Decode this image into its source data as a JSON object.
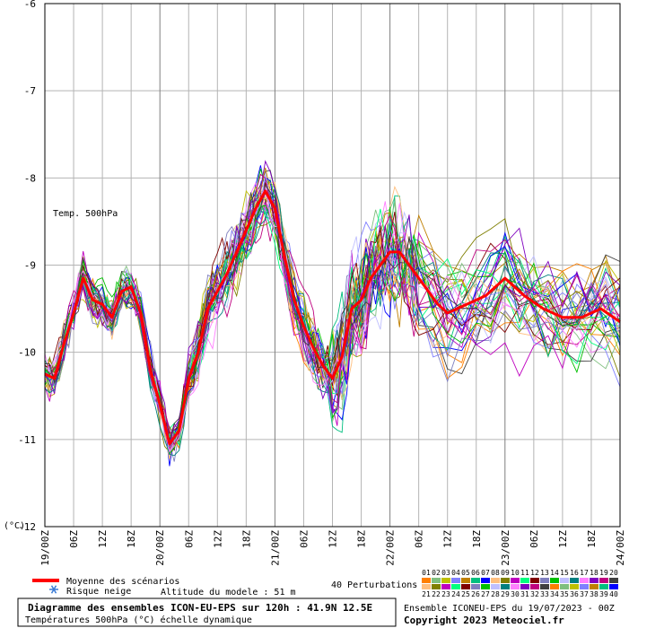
{
  "chart_data": {
    "type": "line",
    "series_label": "Temp. 500hPa",
    "y_unit": "(°C)",
    "ylim": [
      -12,
      -6
    ],
    "y_ticks": [
      -6,
      -7,
      -8,
      -9,
      -10,
      -11,
      -12
    ],
    "x_ticks": [
      "19/00Z",
      "06Z",
      "12Z",
      "18Z",
      "20/00Z",
      "06Z",
      "12Z",
      "18Z",
      "21/00Z",
      "06Z",
      "12Z",
      "18Z",
      "22/00Z",
      "06Z",
      "12Z",
      "18Z",
      "23/00Z",
      "06Z",
      "12Z",
      "18Z",
      "24/00Z"
    ],
    "x_hours": [
      0,
      6,
      12,
      18,
      24,
      30,
      36,
      42,
      48,
      54,
      60,
      66,
      72,
      78,
      84,
      90,
      96,
      102,
      108,
      114,
      120
    ],
    "grid": true,
    "mean_series": {
      "name": "Moyenne des scénarios",
      "color": "#ff0000",
      "points": [
        [
          0,
          -10.25
        ],
        [
          2,
          -10.3
        ],
        [
          4,
          -9.9
        ],
        [
          6,
          -9.55
        ],
        [
          8,
          -9.15
        ],
        [
          10,
          -9.4
        ],
        [
          12,
          -9.45
        ],
        [
          14,
          -9.6
        ],
        [
          16,
          -9.3
        ],
        [
          18,
          -9.25
        ],
        [
          20,
          -9.55
        ],
        [
          22,
          -10.2
        ],
        [
          24,
          -10.6
        ],
        [
          26,
          -11.05
        ],
        [
          28,
          -10.9
        ],
        [
          30,
          -10.3
        ],
        [
          32,
          -10.0
        ],
        [
          34,
          -9.5
        ],
        [
          36,
          -9.3
        ],
        [
          38,
          -9.1
        ],
        [
          40,
          -8.85
        ],
        [
          42,
          -8.6
        ],
        [
          44,
          -8.35
        ],
        [
          46,
          -8.15
        ],
        [
          48,
          -8.35
        ],
        [
          50,
          -8.9
        ],
        [
          52,
          -9.4
        ],
        [
          54,
          -9.7
        ],
        [
          56,
          -9.95
        ],
        [
          58,
          -10.15
        ],
        [
          60,
          -10.3
        ],
        [
          62,
          -10.05
        ],
        [
          64,
          -9.5
        ],
        [
          66,
          -9.4
        ],
        [
          68,
          -9.15
        ],
        [
          70,
          -9.0
        ],
        [
          72,
          -8.85
        ],
        [
          74,
          -8.85
        ],
        [
          78,
          -9.15
        ],
        [
          82,
          -9.45
        ],
        [
          84,
          -9.55
        ],
        [
          88,
          -9.45
        ],
        [
          92,
          -9.35
        ],
        [
          96,
          -9.15
        ],
        [
          100,
          -9.35
        ],
        [
          104,
          -9.5
        ],
        [
          108,
          -9.6
        ],
        [
          112,
          -9.6
        ],
        [
          116,
          -9.5
        ],
        [
          120,
          -9.65
        ]
      ]
    },
    "perturbation_count": "40 Perturbations",
    "palette_row1": [
      "01",
      "02",
      "03",
      "04",
      "05",
      "06",
      "07",
      "08",
      "09",
      "10",
      "11",
      "12",
      "13",
      "14",
      "15",
      "16",
      "17",
      "18",
      "19",
      "20"
    ],
    "palette_row2": [
      "21",
      "22",
      "23",
      "24",
      "25",
      "26",
      "27",
      "28",
      "29",
      "30",
      "31",
      "32",
      "33",
      "34",
      "35",
      "36",
      "37",
      "38",
      "39",
      "40"
    ],
    "palette_colors": [
      "#ff7f00",
      "#7fbf7f",
      "#bfbf00",
      "#7f7fff",
      "#bf7f00",
      "#00bf7f",
      "#0000ff",
      "#ffbf7f",
      "#7f7f00",
      "#bf00bf",
      "#00ff7f",
      "#7f0000",
      "#7f7fbf",
      "#00bf00",
      "#bfbfff",
      "#007f7f",
      "#ff7fff",
      "#7f00bf",
      "#bf007f",
      "#3f3f3f"
    ],
    "title": "Diagramme des ensembles ICON-EU-EPS sur 120h : 41.9N 12.5E",
    "subtitle": "Températures 500hPa (°C) échelle dynamique",
    "legend_mean": "Moyenne des scénarios",
    "legend_snow": "Risque neige",
    "model_altitude": "Altitude du modele : 51 m",
    "run_info": "Ensemble ICONEU-EPS du 19/07/2023 - 00Z",
    "copyright": "Copyright 2023 Meteociel.fr"
  }
}
